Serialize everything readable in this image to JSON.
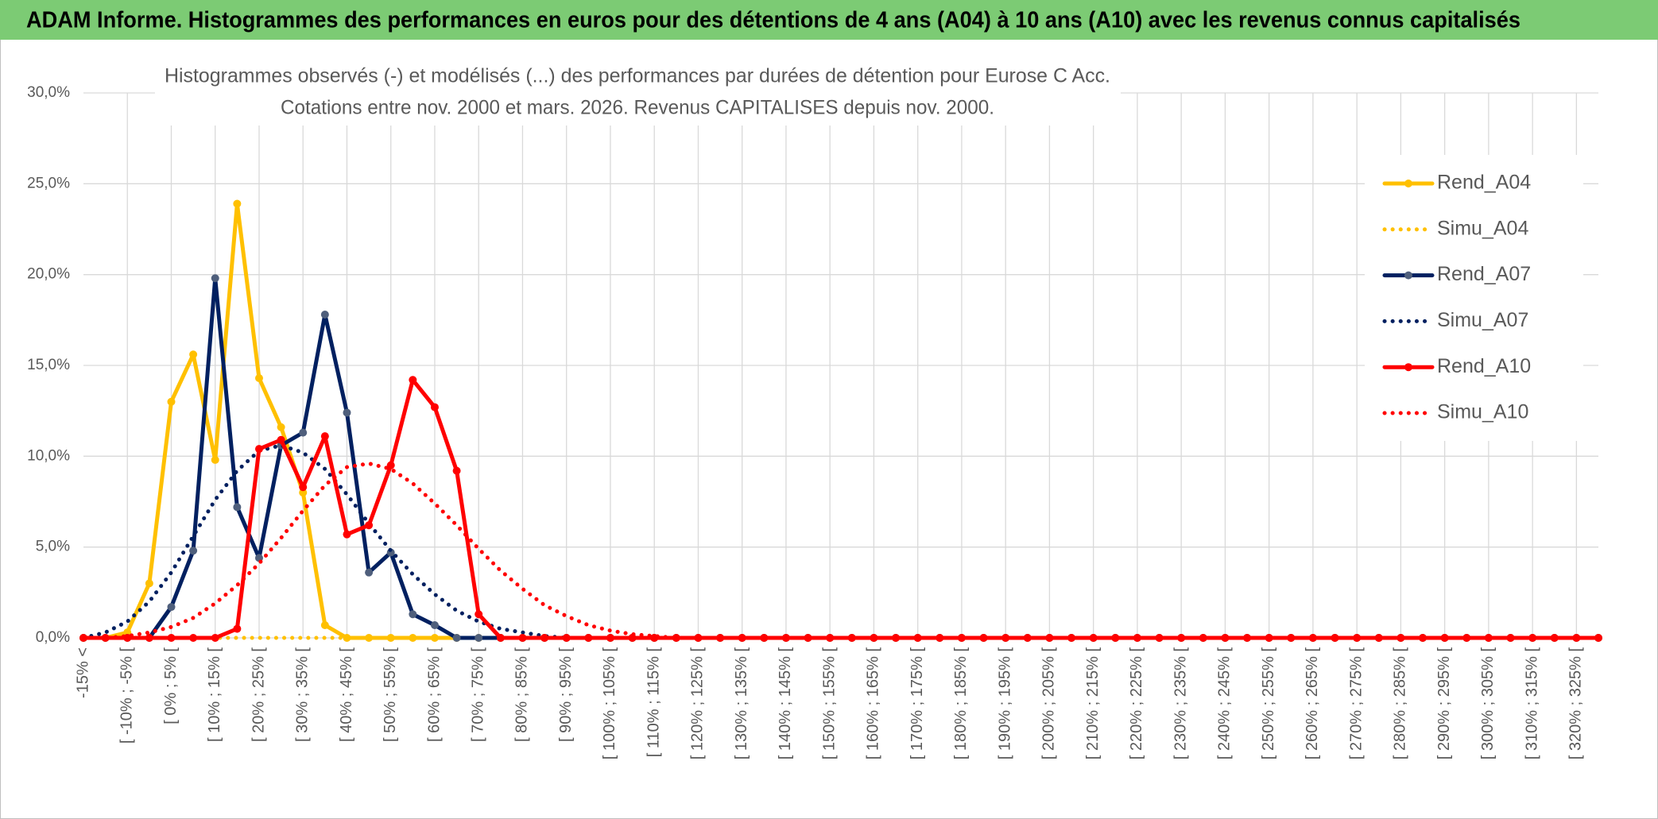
{
  "header": {
    "title": "ADAM Informe. Histogrammes des performances en euros pour des détentions de 4 ans (A04) à 10 ans (A10) avec les revenus connus capitalisés"
  },
  "chart_data": {
    "type": "line",
    "title": "Histogrammes observés (-) et modélisés (...) des performances par durées de détention pour Eurose C Acc.",
    "subtitle": "Cotations entre nov. 2000 et mars. 2026. Revenus CAPITALISES depuis nov. 2000.",
    "categories": [
      "-15% <",
      null,
      "[ -10% ; -5% [",
      null,
      "[ 0% ; 5% [",
      null,
      "[ 10% ; 15% [",
      null,
      "[ 20% ; 25% [",
      null,
      "[ 30% ; 35% [",
      null,
      "[ 40% ; 45% [",
      null,
      "[ 50% ; 55% [",
      null,
      "[ 60% ; 65% [",
      null,
      "[ 70% ; 75% [",
      null,
      "[ 80% ; 85% [",
      null,
      "[ 90% ; 95% [",
      null,
      "[ 100% ; 105% [",
      null,
      "[ 110% ; 115% [",
      null,
      "[ 120% ; 125% [",
      null,
      "[ 130% ; 135% [",
      null,
      "[ 140% ; 145% [",
      null,
      "[ 150% ; 155% [",
      null,
      "[ 160% ; 165% [",
      null,
      "[ 170% ; 175% [",
      null,
      "[ 180% ; 185% [",
      null,
      "[ 190% ; 195% [",
      null,
      "[ 200% ; 205% [",
      null,
      "[ 210% ; 215% [",
      null,
      "[ 220% ; 225% [",
      null,
      "[ 230% ; 235% [",
      null,
      "[ 240% ; 245% [",
      null,
      "[ 250% ; 255% [",
      null,
      "[ 260% ; 265% [",
      null,
      "[ 270% ; 275% [",
      null,
      "[ 280% ; 285% [",
      null,
      "[ 290% ; 295% [",
      null,
      "[ 300% ; 305% [",
      null,
      "[ 310% ; 315% [",
      null,
      "[ 320% ; 325% [",
      null
    ],
    "ylim": [
      0,
      30
    ],
    "yticks": [
      {
        "value": 0,
        "label": "0,0%"
      },
      {
        "value": 5,
        "label": "5,0%"
      },
      {
        "value": 10,
        "label": "10,0%"
      },
      {
        "value": 15,
        "label": "15,0%"
      },
      {
        "value": 20,
        "label": "20,0%"
      },
      {
        "value": 25,
        "label": "25,0%"
      },
      {
        "value": 30,
        "label": "30,0%"
      }
    ],
    "grid": true,
    "legend": "right",
    "series": [
      {
        "name": "Rend_A04",
        "color": "#ffc000",
        "marker_color": "#ffc000",
        "line_style": "solid",
        "values": [
          0,
          0,
          0.3,
          3.0,
          13.0,
          15.6,
          9.8,
          23.9,
          14.3,
          11.6,
          8.0,
          0.7,
          0,
          0,
          0,
          0,
          0,
          0,
          0,
          0,
          0,
          0,
          0,
          0,
          0,
          0,
          0,
          0,
          0,
          0,
          0,
          0,
          0,
          0,
          0,
          0,
          0,
          0,
          0,
          0,
          0,
          0,
          0,
          0,
          0,
          0,
          0,
          0,
          0,
          0,
          0,
          0,
          0,
          0,
          0,
          0,
          0,
          0,
          0,
          0,
          0,
          0,
          0,
          0,
          0,
          0,
          0,
          0,
          0,
          0
        ]
      },
      {
        "name": "Simu_A04",
        "color": "#ffc000",
        "line_style": "dotted",
        "values": [
          0,
          0,
          0,
          0,
          0,
          0,
          0,
          0,
          0,
          0,
          0,
          0,
          0,
          0,
          0,
          0,
          0,
          0,
          0,
          0,
          0,
          0,
          0,
          0,
          0,
          0,
          0,
          0,
          0,
          0,
          0,
          0,
          0,
          0,
          0,
          0,
          0,
          0,
          0,
          0,
          0,
          0,
          0,
          0,
          0,
          0,
          0,
          0,
          0,
          0,
          0,
          0,
          0,
          0,
          0,
          0,
          0,
          0,
          0,
          0,
          0,
          0,
          0,
          0,
          0,
          0,
          0,
          0,
          0,
          0
        ]
      },
      {
        "name": "Rend_A07",
        "color": "#002060",
        "marker_color": "#4f5f7c",
        "line_style": "solid",
        "values": [
          0,
          0,
          0,
          0,
          1.7,
          4.8,
          19.8,
          7.2,
          4.4,
          10.6,
          11.3,
          17.8,
          12.4,
          3.6,
          4.7,
          1.3,
          0.7,
          0,
          0,
          0,
          0,
          0,
          0,
          0,
          0,
          0,
          0,
          0,
          0,
          0,
          0,
          0,
          0,
          0,
          0,
          0,
          0,
          0,
          0,
          0,
          0,
          0,
          0,
          0,
          0,
          0,
          0,
          0,
          0,
          0,
          0,
          0,
          0,
          0,
          0,
          0,
          0,
          0,
          0,
          0,
          0,
          0,
          0,
          0,
          0,
          0,
          0,
          0,
          0,
          0
        ]
      },
      {
        "name": "Simu_A07",
        "color": "#002060",
        "line_style": "dotted",
        "values": [
          0,
          0.3,
          0.9,
          2.0,
          3.6,
          5.6,
          7.6,
          9.2,
          10.3,
          10.6,
          10.2,
          9.3,
          7.9,
          6.3,
          4.8,
          3.5,
          2.4,
          1.5,
          0.9,
          0.5,
          0.3,
          0.1,
          0,
          0,
          0,
          0,
          0,
          0,
          0,
          0,
          0,
          0,
          0,
          0,
          0,
          0,
          0,
          0,
          0,
          0,
          0,
          0,
          0,
          0,
          0,
          0,
          0,
          0,
          0,
          0,
          0,
          0,
          0,
          0,
          0,
          0,
          0,
          0,
          0,
          0,
          0,
          0,
          0,
          0,
          0,
          0,
          0,
          0,
          0,
          0
        ]
      },
      {
        "name": "Rend_A10",
        "color": "#ff0000",
        "marker_color": "#ff0000",
        "line_style": "solid",
        "values": [
          0,
          0,
          0,
          0,
          0,
          0,
          0,
          0.5,
          10.4,
          10.9,
          8.3,
          11.1,
          5.7,
          6.2,
          9.5,
          14.2,
          12.7,
          9.2,
          1.3,
          0,
          0,
          0,
          0,
          0,
          0,
          0,
          0,
          0,
          0,
          0,
          0,
          0,
          0,
          0,
          0,
          0,
          0,
          0,
          0,
          0,
          0,
          0,
          0,
          0,
          0,
          0,
          0,
          0,
          0,
          0,
          0,
          0,
          0,
          0,
          0,
          0,
          0,
          0,
          0,
          0,
          0,
          0,
          0,
          0,
          0,
          0,
          0,
          0,
          0,
          0
        ]
      },
      {
        "name": "Simu_A10",
        "color": "#ff0000",
        "line_style": "dotted",
        "values": [
          0,
          0,
          0.1,
          0.3,
          0.6,
          1.1,
          1.9,
          2.9,
          4.1,
          5.5,
          7.0,
          8.4,
          9.4,
          9.6,
          9.3,
          8.5,
          7.4,
          6.2,
          4.9,
          3.7,
          2.7,
          1.8,
          1.2,
          0.7,
          0.4,
          0.2,
          0.1,
          0,
          0,
          0,
          0,
          0,
          0,
          0,
          0,
          0,
          0,
          0,
          0,
          0,
          0,
          0,
          0,
          0,
          0,
          0,
          0,
          0,
          0,
          0,
          0,
          0,
          0,
          0,
          0,
          0,
          0,
          0,
          0,
          0,
          0,
          0,
          0,
          0,
          0,
          0,
          0,
          0,
          0,
          0
        ]
      }
    ]
  }
}
